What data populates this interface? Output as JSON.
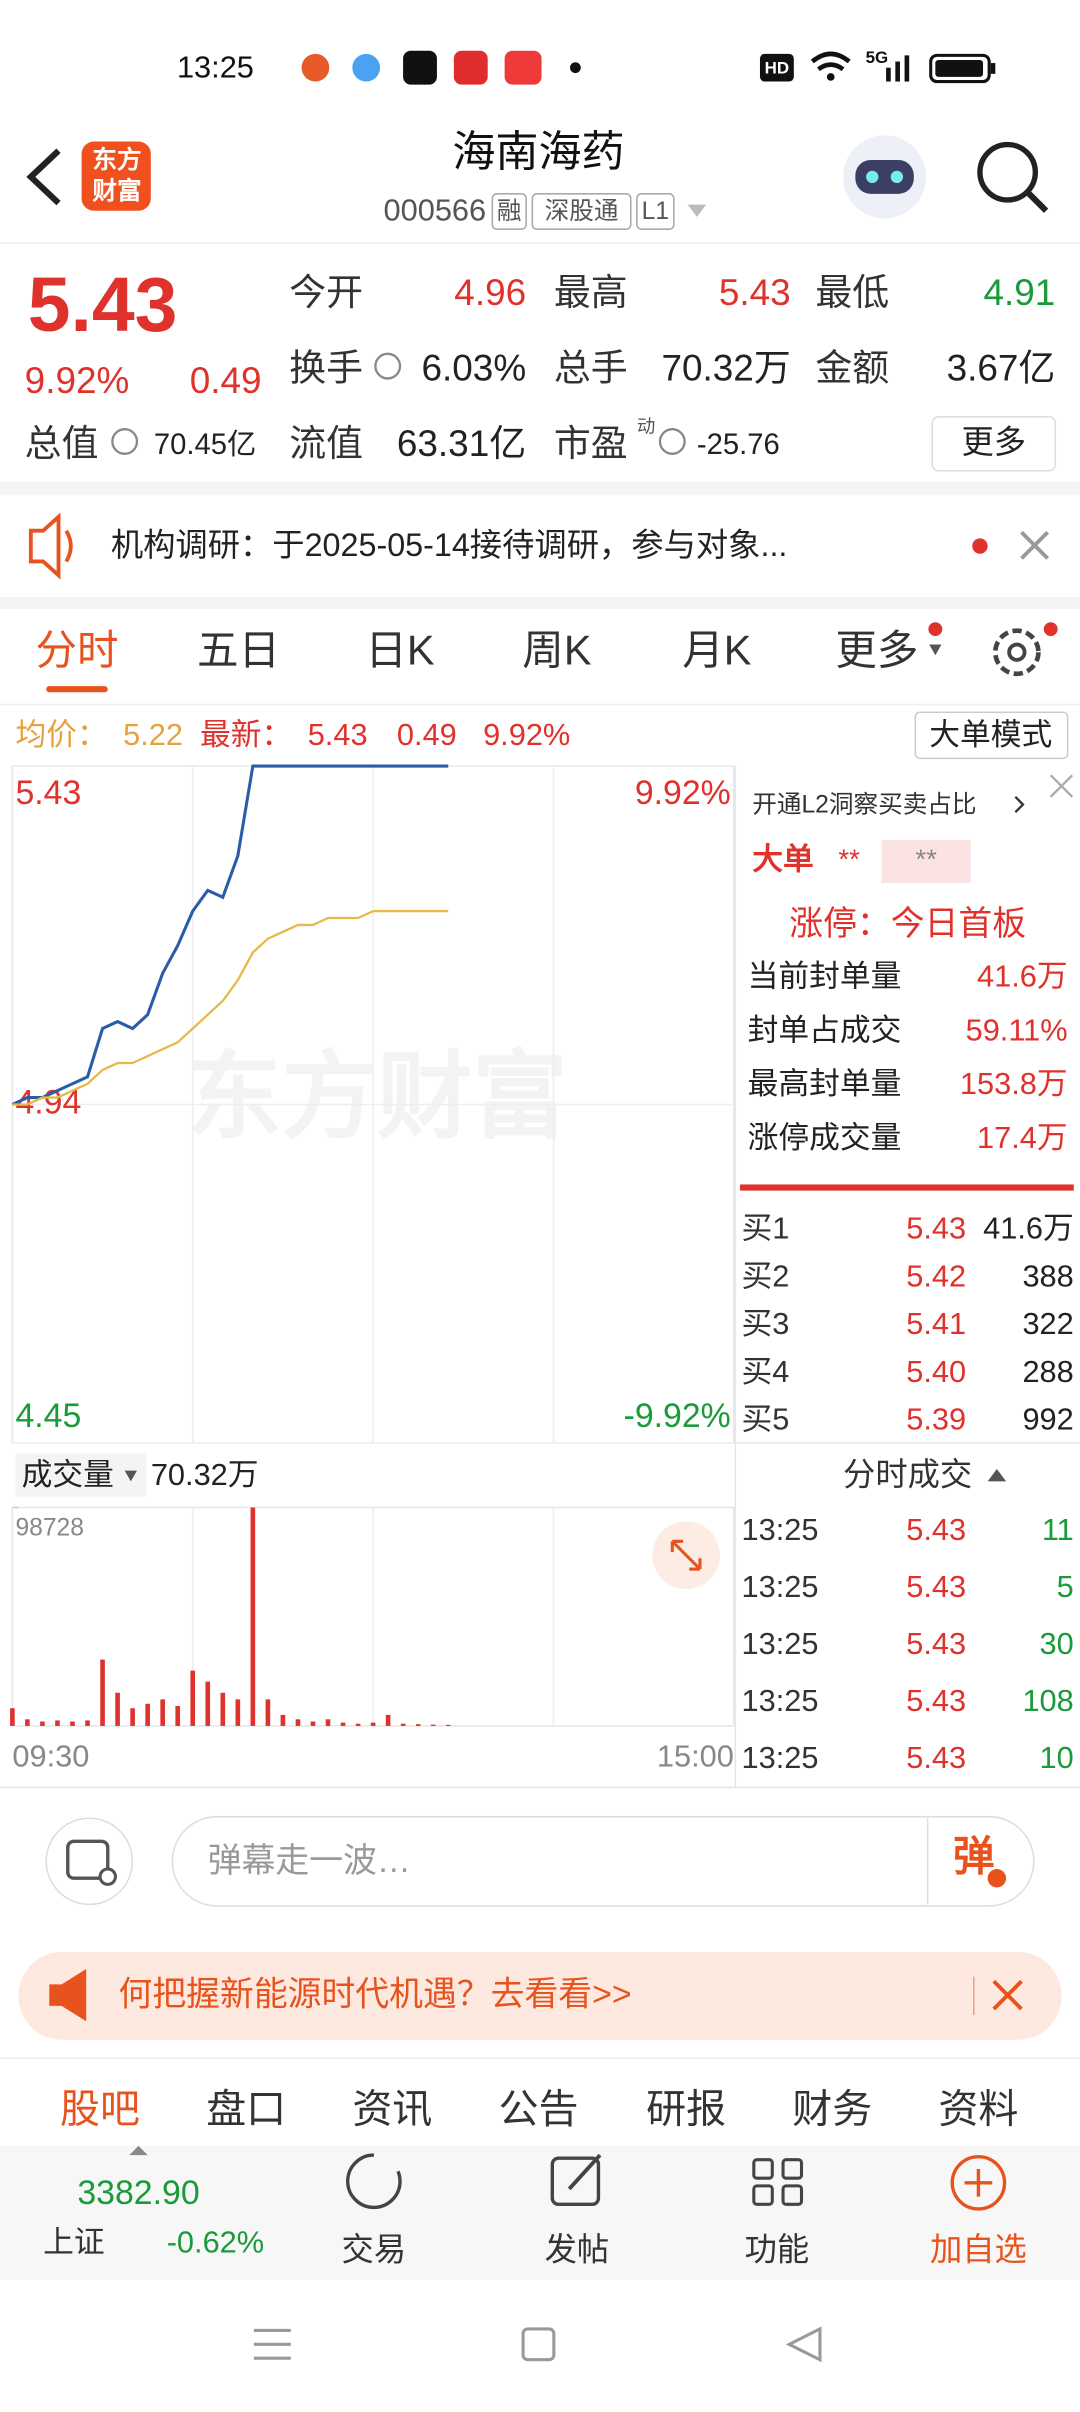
{
  "status_bar": {
    "time": "13:25",
    "hd": "HD",
    "network": "5G"
  },
  "header": {
    "logo": [
      "东方",
      "财富"
    ],
    "title": "海南海药",
    "code": "000566",
    "tags": [
      "融",
      "深股通",
      "L1"
    ]
  },
  "quote": {
    "price": "5.43",
    "change_pct": "9.92%",
    "change": "0.49",
    "fields": [
      {
        "label": "今开",
        "value": "4.96"
      },
      {
        "label": "最高",
        "value": "5.43"
      },
      {
        "label": "最低",
        "value": "4.91"
      },
      {
        "label": "换手",
        "value": "6.03%"
      },
      {
        "label": "总手",
        "value": "70.32万"
      },
      {
        "label": "金额",
        "value": "3.67亿"
      },
      {
        "label": "总值",
        "value": "70.45亿"
      },
      {
        "label": "流值",
        "value": "63.31亿"
      },
      {
        "label": "市盈",
        "value": "-25.76"
      }
    ],
    "pe_mark": "动",
    "more": "更多"
  },
  "notice": {
    "text": "机构调研：于2025-05-14接待调研，参与对象..."
  },
  "chart_tabs": [
    "分时",
    "五日",
    "日K",
    "周K",
    "月K",
    "更多"
  ],
  "chart_info": {
    "avg_label": "均价：",
    "avg": "5.22",
    "latest_label": "最新：",
    "latest": "5.43",
    "change": "0.49",
    "change_pct": "9.92%",
    "mode_button": "大单模式"
  },
  "watermark": "东方财富",
  "chart_data": [
    {
      "type": "line",
      "x": [
        0,
        5,
        10,
        15,
        20,
        25,
        30,
        35,
        40,
        45,
        50,
        55,
        60,
        65,
        70,
        75,
        80,
        85,
        90,
        95,
        100,
        105,
        110,
        115,
        120,
        125,
        130,
        135,
        140,
        145
      ],
      "xlim": [
        0,
        240
      ],
      "ylim": [
        4.45,
        5.43
      ],
      "yticks": [
        5.43,
        4.94,
        4.45
      ],
      "y2lim": [
        -9.92,
        9.92
      ],
      "y2ticks": [
        {
          "value": 9.92,
          "label": "9.92%"
        },
        {
          "value": -9.92,
          "label": "-9.92%"
        }
      ],
      "grid": true,
      "series": [
        {
          "color": "#2a5ca8",
          "values": [
            4.94,
            4.95,
            4.95,
            4.96,
            4.97,
            4.98,
            5.05,
            5.06,
            5.05,
            5.07,
            5.13,
            5.17,
            5.22,
            5.25,
            5.24,
            5.3,
            5.43,
            5.43,
            5.43,
            5.43,
            5.43,
            5.43,
            5.43,
            5.43,
            5.43,
            5.43,
            5.43,
            5.43,
            5.43,
            5.43
          ]
        },
        {
          "color": "#e8b84a",
          "values": [
            4.94,
            4.94,
            4.95,
            4.95,
            4.96,
            4.97,
            4.99,
            5.0,
            5.0,
            5.01,
            5.02,
            5.03,
            5.05,
            5.07,
            5.09,
            5.12,
            5.16,
            5.18,
            5.19,
            5.2,
            5.2,
            5.21,
            5.21,
            5.21,
            5.22,
            5.22,
            5.22,
            5.22,
            5.22,
            5.22
          ]
        }
      ]
    },
    {
      "type": "bar",
      "title": "成交量",
      "total": "70.32万",
      "x": [
        0,
        5,
        10,
        15,
        20,
        25,
        30,
        35,
        40,
        45,
        50,
        55,
        60,
        65,
        70,
        75,
        80,
        85,
        90,
        95,
        100,
        105,
        110,
        115,
        120,
        125,
        130,
        135,
        140,
        145
      ],
      "values": [
        8000,
        3000,
        2000,
        2500,
        2000,
        2500,
        30000,
        15000,
        8000,
        10000,
        12000,
        9000,
        25000,
        20000,
        15000,
        12000,
        98728,
        12000,
        5000,
        3000,
        2000,
        3000,
        1500,
        1000,
        1500,
        5000,
        1000,
        800,
        600,
        500
      ],
      "color": "#e0322c",
      "xlim": [
        0,
        240
      ],
      "xticks": [
        {
          "value": 0,
          "label": "09:30"
        },
        {
          "value": 240,
          "label": "15:00"
        }
      ],
      "ylim": [
        0,
        98728
      ],
      "yticks": [
        98728
      ],
      "grid": true
    }
  ],
  "l2_panel": {
    "promo": "开通L2洞察买卖占比",
    "big_order": "大单",
    "masked": [
      "**",
      "**"
    ],
    "limit_status": "涨停：今日首板",
    "stats": [
      {
        "label": "当前封单量",
        "value": "41.6万"
      },
      {
        "label": "封单占成交",
        "value": "59.11%"
      },
      {
        "label": "最高封单量",
        "value": "153.8万"
      },
      {
        "label": "涨停成交量",
        "value": "17.4万"
      }
    ]
  },
  "order_book": [
    {
      "label": "买1",
      "price": "5.43",
      "volume": "41.6万"
    },
    {
      "label": "买2",
      "price": "5.42",
      "volume": "388"
    },
    {
      "label": "买3",
      "price": "5.41",
      "volume": "322"
    },
    {
      "label": "买4",
      "price": "5.40",
      "volume": "288"
    },
    {
      "label": "买5",
      "price": "5.39",
      "volume": "992"
    }
  ],
  "trades": {
    "title": "分时成交",
    "rows": [
      {
        "time": "13:25",
        "price": "5.43",
        "volume": "11"
      },
      {
        "time": "13:25",
        "price": "5.43",
        "volume": "5"
      },
      {
        "time": "13:25",
        "price": "5.43",
        "volume": "30"
      },
      {
        "time": "13:25",
        "price": "5.43",
        "volume": "108"
      },
      {
        "time": "13:25",
        "price": "5.43",
        "volume": "10"
      }
    ]
  },
  "comment_bar": {
    "placeholder": "弹幕走一波…",
    "button": "弹"
  },
  "ad": {
    "text": "何把握新能源时代机遇？去看看>>"
  },
  "bottom_tabs": [
    "股吧",
    "盘口",
    "资讯",
    "公告",
    "研报",
    "财务",
    "资料"
  ],
  "bottom_nav": {
    "index_value": "3382.90",
    "index_name": "上证",
    "index_change": "-0.62%",
    "items": [
      "交易",
      "发帖",
      "功能",
      "加自选"
    ]
  }
}
